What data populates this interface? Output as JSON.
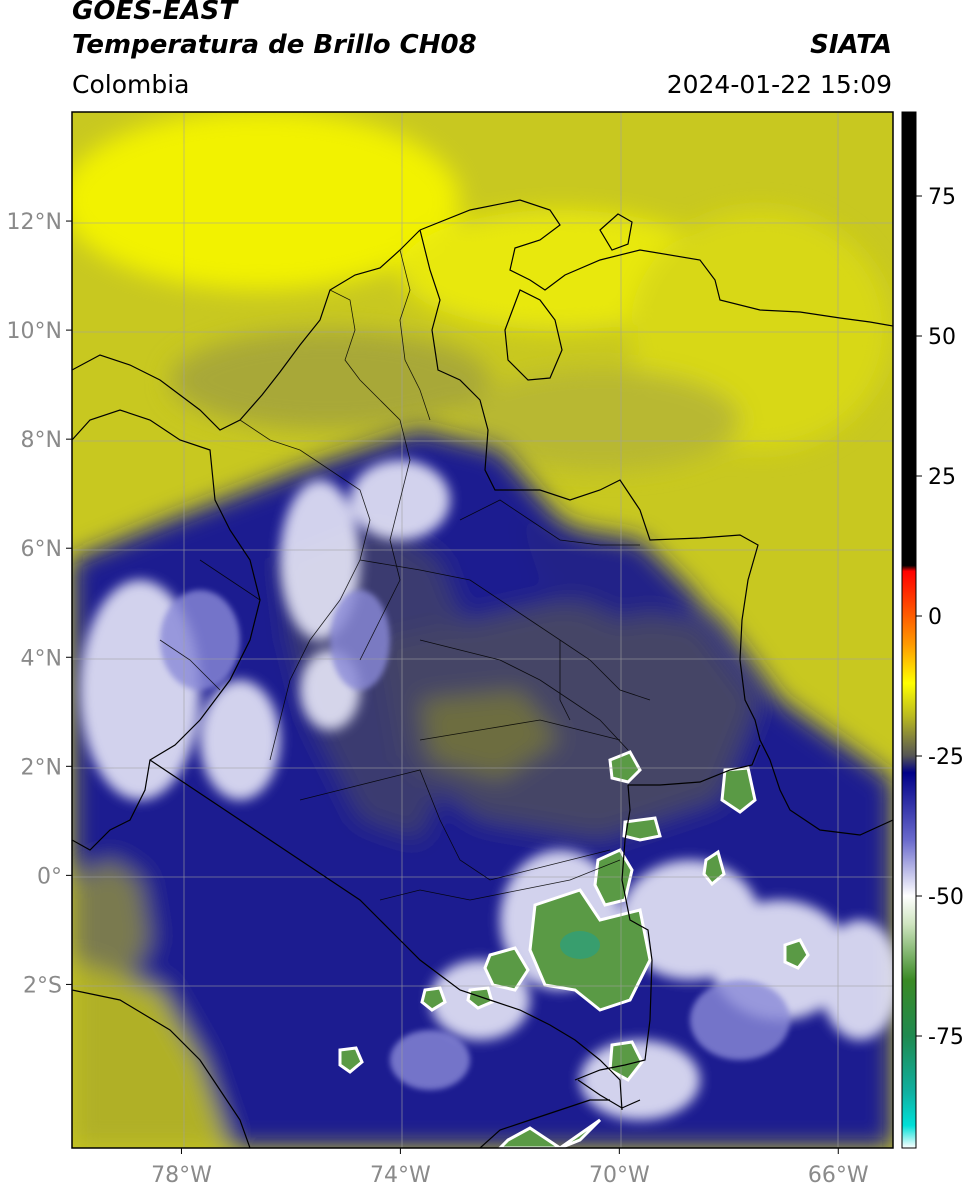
{
  "header": {
    "satellite": "GOES-EAST",
    "product": "Temperatura de Brillo CH08",
    "region": "Colombia",
    "agency": "SIATA",
    "datetime": "2024-01-22 15:09"
  },
  "map": {
    "lon_range": [
      -80,
      -65
    ],
    "lat_range": [
      -5,
      14
    ],
    "lat_ticks": [
      {
        "value": 12,
        "label": "12°N"
      },
      {
        "value": 10,
        "label": "10°N"
      },
      {
        "value": 8,
        "label": "8°N"
      },
      {
        "value": 6,
        "label": "6°N"
      },
      {
        "value": 4,
        "label": "4°N"
      },
      {
        "value": 2,
        "label": "2°N"
      },
      {
        "value": 0,
        "label": "0°"
      },
      {
        "value": -2,
        "label": "2°S"
      }
    ],
    "lon_ticks": [
      {
        "value": -78,
        "label": "78°W"
      },
      {
        "value": -74,
        "label": "74°W"
      },
      {
        "value": -70,
        "label": "70°W"
      },
      {
        "value": -66,
        "label": "66°W"
      }
    ]
  },
  "colorbar": {
    "range": [
      -95,
      90
    ],
    "ticks": [
      {
        "value": 75,
        "label": "75"
      },
      {
        "value": 50,
        "label": "50"
      },
      {
        "value": 25,
        "label": "25"
      },
      {
        "value": 0,
        "label": "0"
      },
      {
        "value": -25,
        "label": "-25"
      },
      {
        "value": -50,
        "label": "-50"
      },
      {
        "value": -75,
        "label": "-75"
      }
    ],
    "stops": [
      {
        "value": -95,
        "color": "#ffffff"
      },
      {
        "value": -91,
        "color": "#00e0d8"
      },
      {
        "value": -85,
        "color": "#10b0a0"
      },
      {
        "value": -75,
        "color": "#1f8a50"
      },
      {
        "value": -65,
        "color": "#3a8a25"
      },
      {
        "value": -55,
        "color": "#cfe5c0"
      },
      {
        "value": -50,
        "color": "#ffffff"
      },
      {
        "value": -40,
        "color": "#6a6acc"
      },
      {
        "value": -28,
        "color": "#000088"
      },
      {
        "value": -25,
        "color": "#555555"
      },
      {
        "value": -18,
        "color": "#b8b820"
      },
      {
        "value": -12,
        "color": "#ffff00"
      },
      {
        "value": -5,
        "color": "#ff9900"
      },
      {
        "value": 5,
        "color": "#ff2200"
      },
      {
        "value": 8,
        "color": "#ff0000"
      },
      {
        "value": 9,
        "color": "#000000"
      },
      {
        "value": 90,
        "color": "#000000"
      }
    ]
  },
  "colors": {
    "cold_deep": "#000088",
    "warm_dry": "#c8c820",
    "very_dry": "#f0f000",
    "gray_mid": "#666666",
    "convective_white": "#eeeeff",
    "overshoot_green": "#5a9a45",
    "boundary": "#000000",
    "grid": "#a0a0a0"
  }
}
